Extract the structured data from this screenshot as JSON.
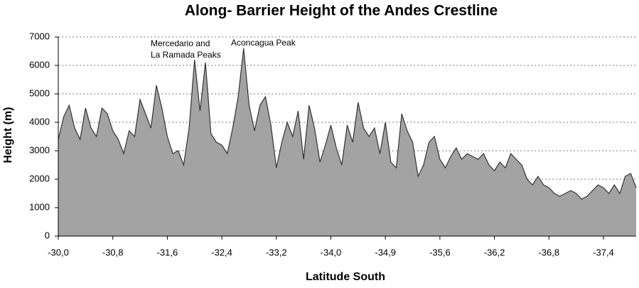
{
  "chart_data": {
    "type": "area",
    "title": "Along- Barrier Height of the Andes Crestline",
    "x_label": "Latitude South",
    "y_label": "Height (m)",
    "annotations": [
      {
        "text": [
          "Mercedario and",
          "La Ramada Peaks"
        ]
      },
      {
        "text": [
          "Aconcagua Peak"
        ]
      }
    ],
    "categories": [
      "-30,0",
      null,
      null,
      null,
      null,
      null,
      null,
      null,
      null,
      null,
      "-30,8",
      null,
      null,
      null,
      null,
      null,
      null,
      null,
      null,
      null,
      "-31,6",
      null,
      null,
      null,
      null,
      null,
      null,
      null,
      null,
      null,
      "-32,4",
      null,
      null,
      null,
      null,
      null,
      null,
      null,
      null,
      null,
      "-33,2",
      null,
      null,
      null,
      null,
      null,
      null,
      null,
      null,
      null,
      "-34,0",
      null,
      null,
      null,
      null,
      null,
      null,
      null,
      null,
      null,
      "-34,9",
      null,
      null,
      null,
      null,
      null,
      null,
      null,
      null,
      null,
      "-35,6",
      null,
      null,
      null,
      null,
      null,
      null,
      null,
      null,
      null,
      "-36,2",
      null,
      null,
      null,
      null,
      null,
      null,
      null,
      null,
      null,
      "-36,8",
      null,
      null,
      null,
      null,
      null,
      null,
      null,
      null,
      null,
      "-37,4",
      null,
      null,
      null,
      null,
      null,
      null
    ],
    "values": [
      3400,
      4200,
      4600,
      3800,
      3400,
      4500,
      3800,
      3500,
      4500,
      4300,
      3700,
      3400,
      2900,
      3700,
      3500,
      4800,
      4300,
      3800,
      5300,
      4500,
      3500,
      2900,
      3000,
      2500,
      3800,
      6200,
      4400,
      6100,
      3600,
      3300,
      3200,
      2900,
      3800,
      4900,
      6600,
      4600,
      3700,
      4600,
      4900,
      3900,
      2400,
      3300,
      4000,
      3500,
      4400,
      2700,
      4600,
      3800,
      2600,
      3200,
      3900,
      3100,
      2500,
      3900,
      3300,
      4700,
      3800,
      3500,
      3800,
      2900,
      4000,
      2600,
      2400,
      4300,
      3700,
      3300,
      2100,
      2500,
      3300,
      3500,
      2700,
      2400,
      2800,
      3100,
      2700,
      2900,
      2800,
      2700,
      2900,
      2500,
      2300,
      2600,
      2400,
      2900,
      2700,
      2500,
      2000,
      1800,
      2100,
      1800,
      1700,
      1500,
      1400,
      1500,
      1600,
      1500,
      1300,
      1400,
      1600,
      1800,
      1700,
      1500,
      1800,
      1500,
      2100,
      2200,
      1700
    ],
    "color": "#a3a3a3",
    "line_color": "#333333",
    "ylim": [
      0,
      7000
    ],
    "yticks": [
      0,
      1000,
      2000,
      3000,
      4000,
      5000,
      6000,
      7000
    ],
    "grid": true
  }
}
